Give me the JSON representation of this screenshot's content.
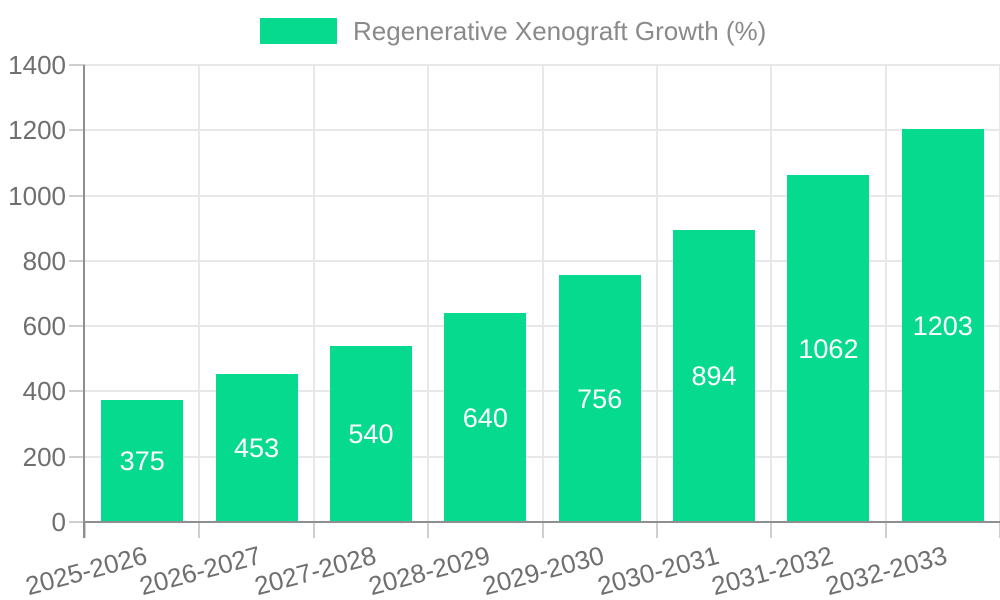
{
  "chart_data": {
    "type": "bar",
    "title": "Regenerative Xenograft Growth (%)",
    "legend": [
      "Regenerative Xenograft Growth (%)"
    ],
    "legend_position": "top-center",
    "categories": [
      "2025-2026",
      "2026-2027",
      "2027-2028",
      "2028-2029",
      "2029-2030",
      "2030-2031",
      "2031-2032",
      "2032-2033"
    ],
    "series": [
      {
        "name": "Regenerative Xenograft Growth (%)",
        "values": [
          375,
          453,
          540,
          640,
          756,
          894,
          1062,
          1203
        ]
      }
    ],
    "values": [
      375,
      453,
      540,
      640,
      756,
      894,
      1062,
      1203
    ],
    "xlabel": "",
    "ylabel": "",
    "ylim": [
      0,
      1400
    ],
    "y_ticks": [
      0,
      200,
      400,
      600,
      800,
      1000,
      1200,
      1400
    ],
    "grid": true,
    "bar_labels_inside": true,
    "x_label_rotation_deg": -15,
    "colors": {
      "bar": "#06DA8F",
      "bar_label_text": "#FFFFFF",
      "axis_tick_text": "#6F6F6F",
      "legend_text": "#8A8A8A",
      "gridline": "#E8E8E8",
      "tick_mark": "#CFCFCF",
      "axis_line": "#8F8F8F",
      "background": "#FFFFFF"
    }
  }
}
